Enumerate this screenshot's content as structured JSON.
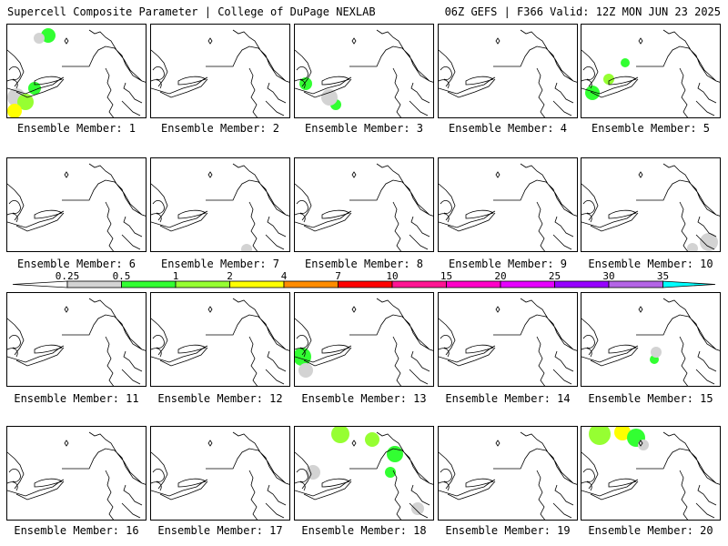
{
  "header": {
    "left": "Supercell Composite Parameter | College of DuPage NEXLAB",
    "right": "06Z GEFS | F366 Valid: 12Z MON JUN 23 2025"
  },
  "legend": {
    "ticks": [
      "0.25",
      "0.5",
      "1",
      "2",
      "4",
      "7",
      "10",
      "15",
      "20",
      "25",
      "30",
      "35"
    ],
    "colors": [
      "#d3d3d3",
      "#32ff32",
      "#96ff32",
      "#ffff00",
      "#ff8c00",
      "#ff0000",
      "#ff1493",
      "#ff00c8",
      "#e600ff",
      "#9600ff",
      "#b464e6",
      "#00ffff"
    ]
  },
  "panels": [
    {
      "label": "Ensemble Member: 1",
      "blobs": [
        {
          "x": 10,
          "y": 80,
          "r": 10,
          "c": "#d3d3d3"
        },
        {
          "x": 20,
          "y": 85,
          "r": 9,
          "c": "#96ff32"
        },
        {
          "x": 8,
          "y": 95,
          "r": 8,
          "c": "#ffff00"
        },
        {
          "x": 30,
          "y": 70,
          "r": 7,
          "c": "#32ff32"
        },
        {
          "x": 45,
          "y": 12,
          "r": 8,
          "c": "#32ff32"
        },
        {
          "x": 35,
          "y": 15,
          "r": 6,
          "c": "#d3d3d3"
        }
      ]
    },
    {
      "label": "Ensemble Member: 2",
      "blobs": []
    },
    {
      "label": "Ensemble Member: 3",
      "blobs": [
        {
          "x": 12,
          "y": 65,
          "r": 7,
          "c": "#32ff32"
        },
        {
          "x": 45,
          "y": 88,
          "r": 6,
          "c": "#32ff32"
        },
        {
          "x": 38,
          "y": 80,
          "r": 9,
          "c": "#d3d3d3"
        }
      ]
    },
    {
      "label": "Ensemble Member: 4",
      "blobs": []
    },
    {
      "label": "Ensemble Member: 5",
      "blobs": [
        {
          "x": 12,
          "y": 75,
          "r": 8,
          "c": "#32ff32"
        },
        {
          "x": 30,
          "y": 60,
          "r": 6,
          "c": "#96ff32"
        },
        {
          "x": 48,
          "y": 42,
          "r": 5,
          "c": "#32ff32"
        }
      ]
    },
    {
      "label": "Ensemble Member: 6",
      "blobs": []
    },
    {
      "label": "Ensemble Member: 7",
      "blobs": [
        {
          "x": 105,
          "y": 100,
          "r": 6,
          "c": "#d3d3d3"
        }
      ]
    },
    {
      "label": "Ensemble Member: 8",
      "blobs": []
    },
    {
      "label": "Ensemble Member: 9",
      "blobs": []
    },
    {
      "label": "Ensemble Member: 10",
      "blobs": [
        {
          "x": 140,
          "y": 92,
          "r": 10,
          "c": "#d3d3d3"
        },
        {
          "x": 122,
          "y": 99,
          "r": 6,
          "c": "#d3d3d3"
        }
      ]
    },
    {
      "label": "Ensemble Member: 11",
      "blobs": []
    },
    {
      "label": "Ensemble Member: 12",
      "blobs": []
    },
    {
      "label": "Ensemble Member: 13",
      "blobs": [
        {
          "x": 8,
          "y": 70,
          "r": 10,
          "c": "#32ff32"
        },
        {
          "x": 12,
          "y": 85,
          "r": 8,
          "c": "#d3d3d3"
        }
      ]
    },
    {
      "label": "Ensemble Member: 14",
      "blobs": []
    },
    {
      "label": "Ensemble Member: 15",
      "blobs": [
        {
          "x": 80,
          "y": 73,
          "r": 5,
          "c": "#32ff32"
        },
        {
          "x": 82,
          "y": 65,
          "r": 6,
          "c": "#d3d3d3"
        }
      ]
    },
    {
      "label": "Ensemble Member: 16",
      "blobs": []
    },
    {
      "label": "Ensemble Member: 17",
      "blobs": []
    },
    {
      "label": "Ensemble Member: 18",
      "blobs": [
        {
          "x": 50,
          "y": 8,
          "r": 10,
          "c": "#96ff32"
        },
        {
          "x": 85,
          "y": 14,
          "r": 8,
          "c": "#96ff32"
        },
        {
          "x": 110,
          "y": 30,
          "r": 9,
          "c": "#32ff32"
        },
        {
          "x": 105,
          "y": 50,
          "r": 6,
          "c": "#32ff32"
        },
        {
          "x": 20,
          "y": 50,
          "r": 8,
          "c": "#d3d3d3"
        },
        {
          "x": 135,
          "y": 90,
          "r": 7,
          "c": "#d3d3d3"
        }
      ]
    },
    {
      "label": "Ensemble Member: 19",
      "blobs": []
    },
    {
      "label": "Ensemble Member: 20",
      "blobs": [
        {
          "x": 20,
          "y": 8,
          "r": 12,
          "c": "#96ff32"
        },
        {
          "x": 45,
          "y": 6,
          "r": 9,
          "c": "#ffff00"
        },
        {
          "x": 60,
          "y": 12,
          "r": 10,
          "c": "#32ff32"
        },
        {
          "x": 68,
          "y": 20,
          "r": 6,
          "c": "#d3d3d3"
        }
      ]
    }
  ]
}
